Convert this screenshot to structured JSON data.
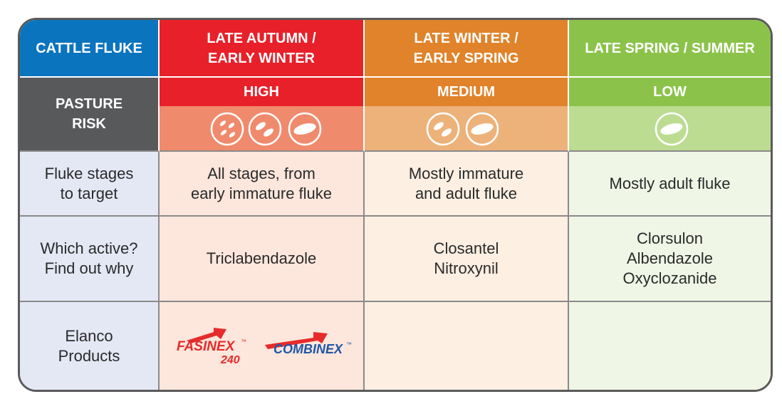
{
  "header": {
    "corner": "CATTLE FLUKE",
    "seasons": [
      [
        "LATE AUTUMN /",
        "EARLY WINTER"
      ],
      [
        "LATE WINTER /",
        "EARLY SPRING"
      ],
      [
        "LATE SPRING / SUMMER"
      ]
    ]
  },
  "risk": {
    "label": [
      "PASTURE",
      "RISK"
    ],
    "levels": [
      "HIGH",
      "MEDIUM",
      "LOW"
    ]
  },
  "rows": [
    {
      "label": [
        "Fluke stages",
        "to target"
      ],
      "cells": [
        [
          "All stages, from",
          "early immature fluke"
        ],
        [
          "Mostly immature",
          "and adult fluke"
        ],
        [
          "Mostly adult fluke"
        ]
      ]
    },
    {
      "label": [
        "Which active?",
        "Find out why"
      ],
      "cells": [
        [
          "Triclabendazole"
        ],
        [
          "Closantel",
          "Nitroxynil"
        ],
        [
          "Clorsulon",
          "Albendazole",
          "Oxyclozanide"
        ]
      ]
    },
    {
      "label": [
        "Elanco",
        "Products"
      ]
    }
  ],
  "products": [
    {
      "name": "FASINEX",
      "tm": "™",
      "sub": "240"
    },
    {
      "name": "COMBINEX",
      "tm": "™"
    }
  ]
}
